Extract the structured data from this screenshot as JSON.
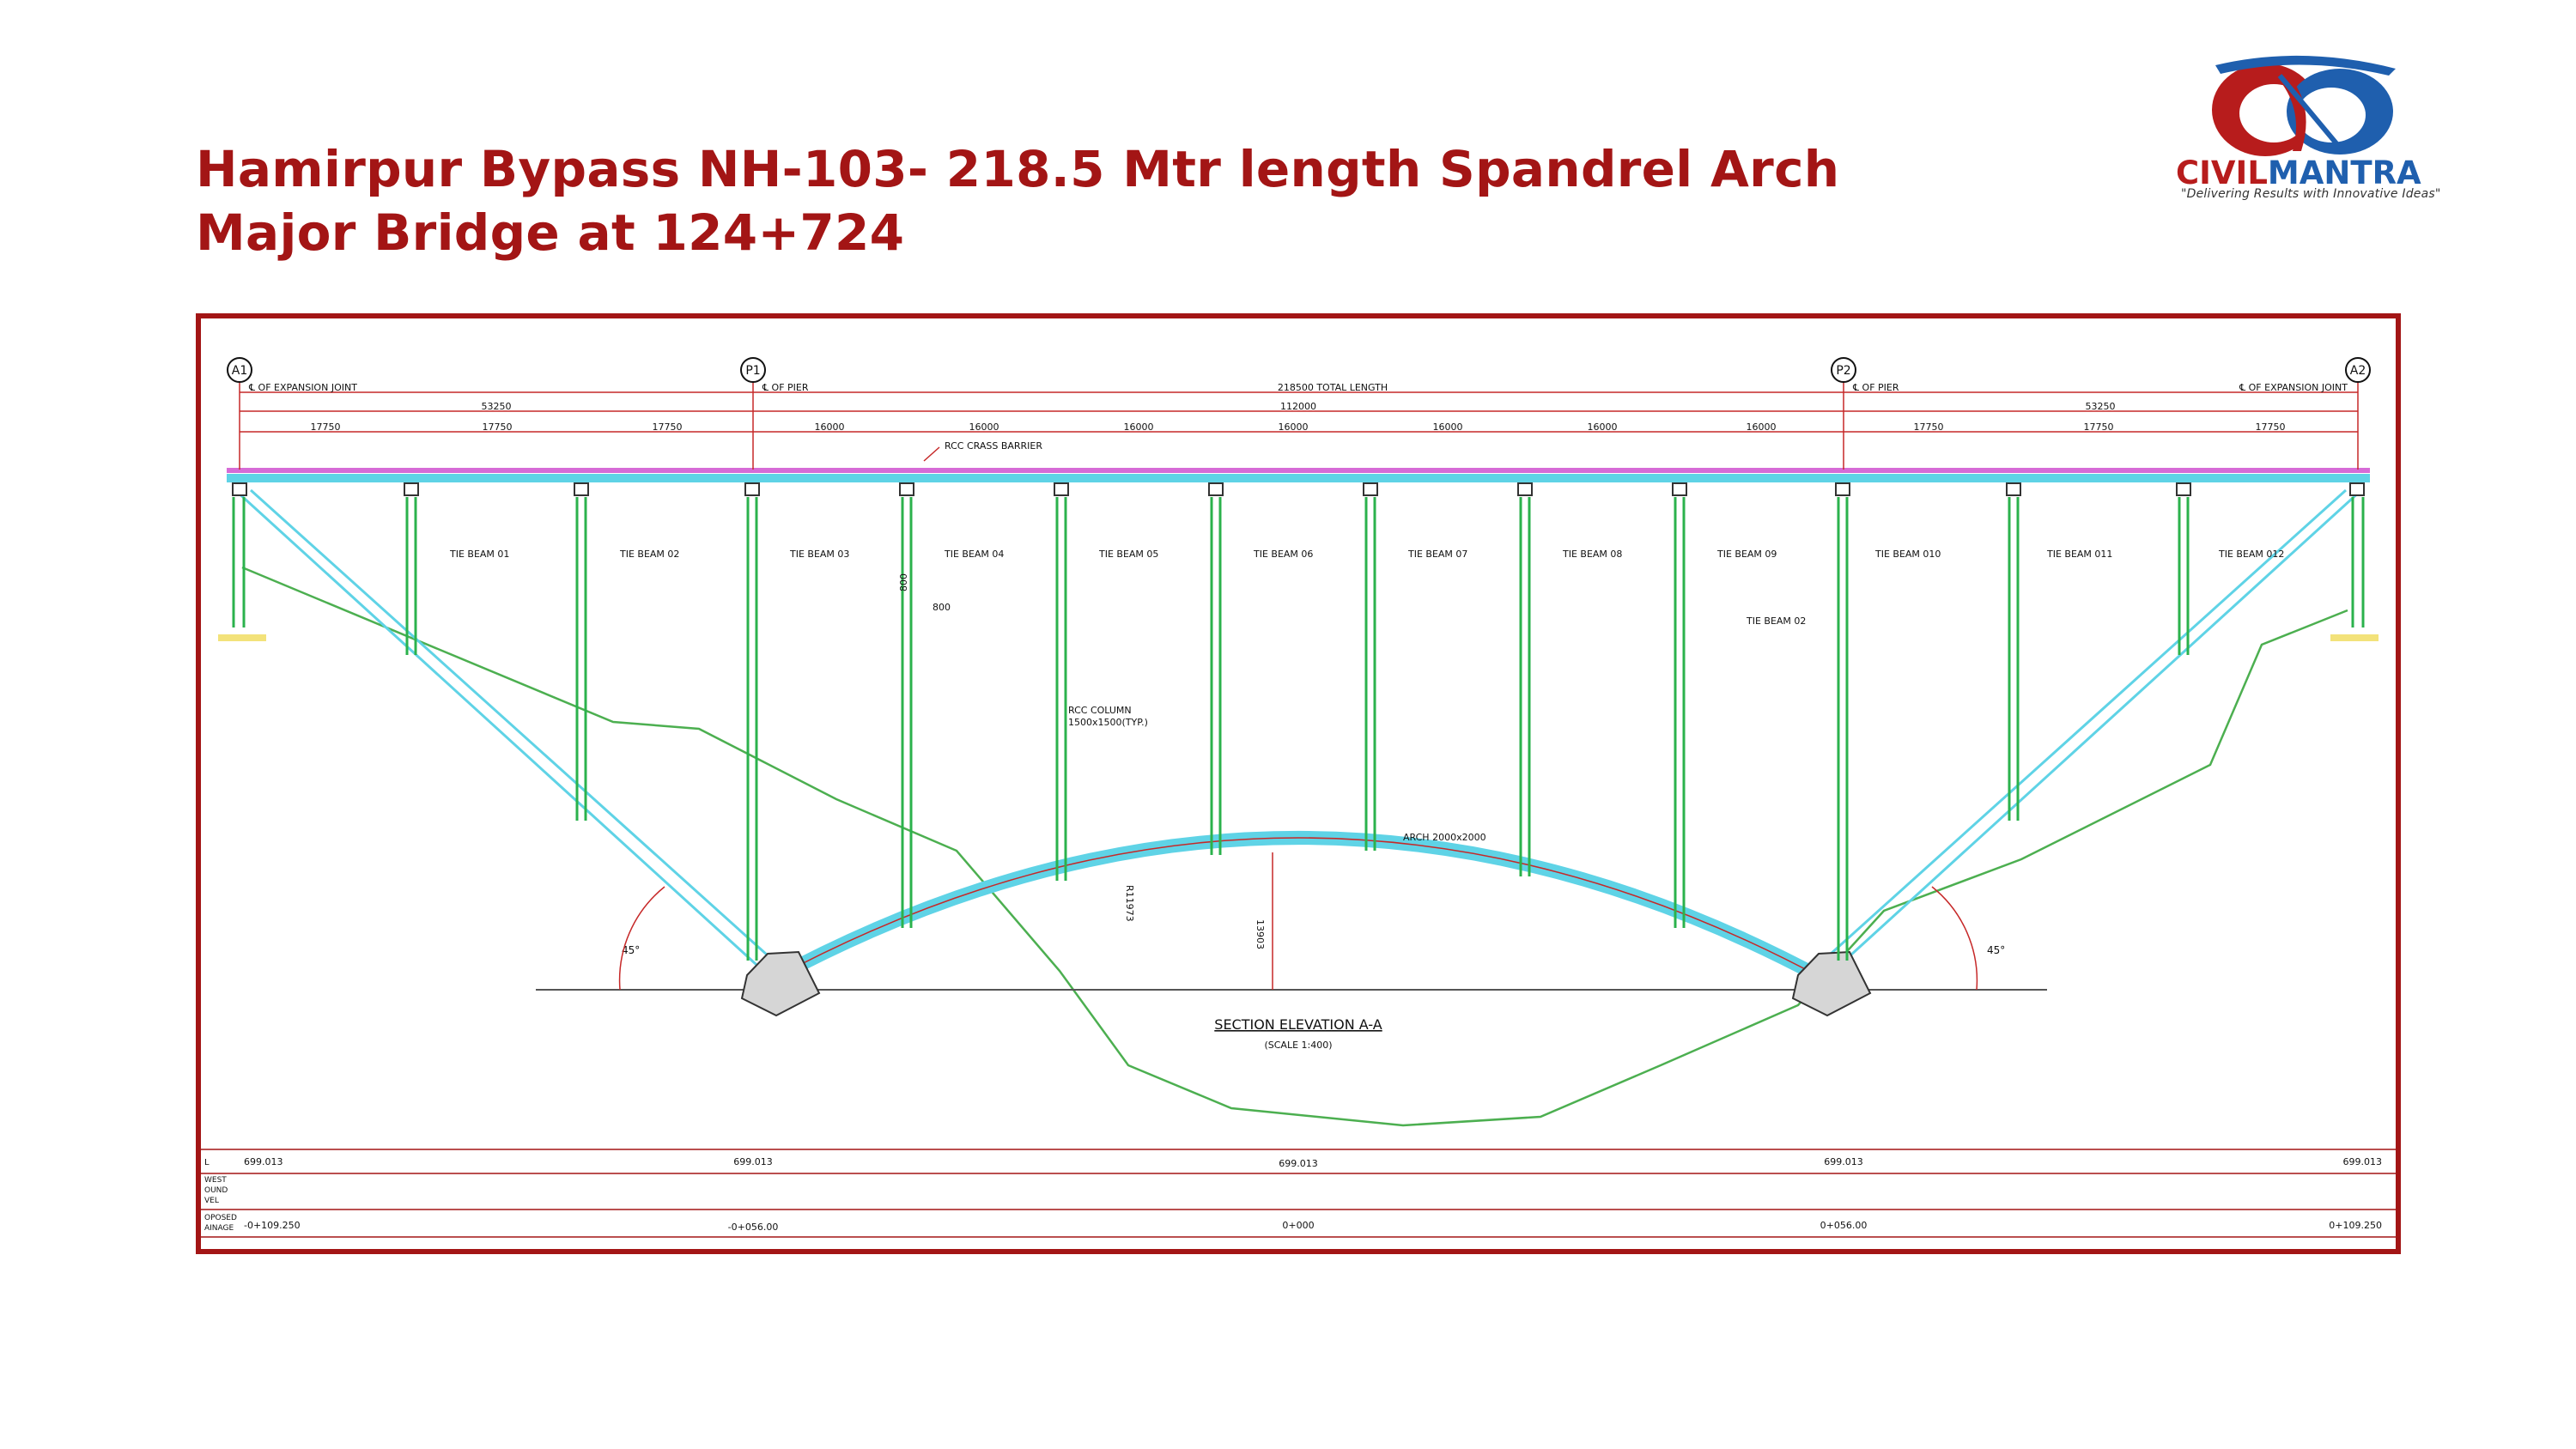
{
  "title": {
    "line1": "Hamirpur Bypass NH-103- 218.5 Mtr length Spandrel Arch",
    "line2": "Major Bridge at 124+724"
  },
  "logo": {
    "word_part1": "CIVIL",
    "word_part2": "MANTRA",
    "tagline": "\"Delivering Results with Innovative Ideas\"",
    "colors": {
      "red": "#b71c1c",
      "blue": "#1f5fae"
    }
  },
  "drawing": {
    "supports": {
      "a1": "A1",
      "p1": "P1",
      "p2": "P2",
      "a2": "A2",
      "a1_label": "℄ OF EXPANSION JOINT",
      "p1_label": "℄ OF PIER",
      "p2_label": "℄ OF PIER",
      "a2_label": "℄ OF EXPANSION JOINT"
    },
    "dimensions": {
      "total": "218500 TOTAL LENGTH",
      "left_span": "53250",
      "middle_span": "112000",
      "right_span": "53250",
      "bays": [
        "17750",
        "17750",
        "17750",
        "16000",
        "16000",
        "16000",
        "16000",
        "16000",
        "16000",
        "16000",
        "17750",
        "17750",
        "17750"
      ]
    },
    "labels": {
      "crash_barrier": "RCC CRASS BARRIER",
      "column": "RCC COLUMN",
      "column_size": "1500x1500(TYP.)",
      "arch": "ARCH 2000x2000",
      "radius": "R11973",
      "rise": "13903",
      "sec_800_v": "800",
      "sec_800_h": "800",
      "angle_left": "45°",
      "angle_right": "45°",
      "tie_beam_extra": "TIE BEAM 02"
    },
    "tie_beams": [
      "TIE BEAM 01",
      "TIE BEAM 02",
      "TIE BEAM 03",
      "TIE BEAM 04",
      "TIE BEAM 05",
      "TIE BEAM 06",
      "TIE BEAM 07",
      "TIE BEAM 08",
      "TIE BEAM 09",
      "TIE BEAM 010",
      "TIE BEAM 011",
      "TIE BEAM 012"
    ],
    "section": {
      "title": "SECTION ELEVATION A-A",
      "scale": "(SCALE 1:400)"
    },
    "table": {
      "row1_header": "L",
      "row2_header": [
        "WEST",
        "OUND",
        "VEL"
      ],
      "row3_header": [
        "OPOSED",
        "AINAGE"
      ],
      "levels": [
        "699.013",
        "699.013",
        "699.013",
        "699.013",
        "699.013"
      ],
      "chainages": [
        "-0+109.250",
        "-0+056.00",
        "0+000",
        "0+056.00",
        "0+109.250"
      ]
    },
    "colors": {
      "structure": "#2bb24c",
      "deck": "#5fd3e6",
      "deck_top": "#d66bd6",
      "ground": "#4caf50",
      "dim": "#c62828",
      "frame": "#a31515"
    }
  }
}
